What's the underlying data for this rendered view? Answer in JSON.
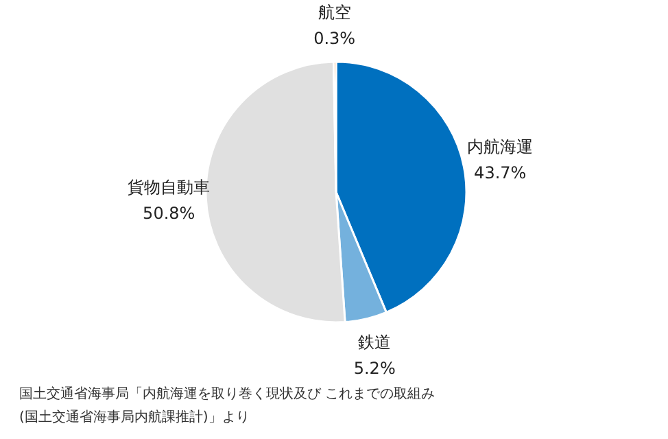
{
  "chart_data": {
    "type": "pie",
    "categories": [
      "内航海運",
      "鉄道",
      "貨物自動車",
      "航空"
    ],
    "values": [
      43.7,
      5.2,
      50.8,
      0.3
    ],
    "colors": [
      "#0070bf",
      "#74b1dd",
      "#e0e0e0",
      "#ef7d1a"
    ],
    "value_labels": [
      "43.7%",
      "5.2%",
      "50.8%",
      "0.3%"
    ],
    "annotations": [
      "国土交通省海事局「内航海運を取り巻く現状及び これまでの取組み",
      "(国土交通省海事局内航課推計)」より"
    ]
  }
}
